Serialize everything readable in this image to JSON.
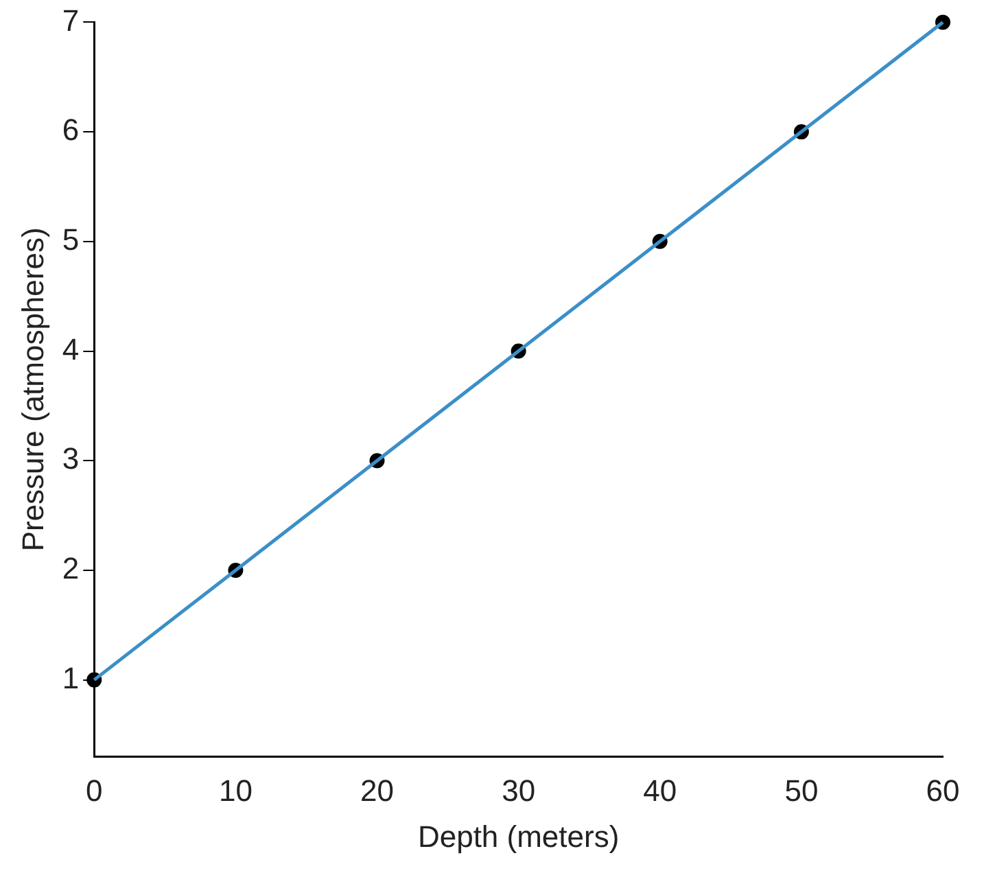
{
  "chart_data": {
    "type": "line",
    "xlabel": "Depth (meters)",
    "ylabel": "Pressure (atmospheres)",
    "x": [
      0,
      10,
      20,
      30,
      40,
      50,
      60
    ],
    "series": [
      {
        "color": "#3b8fc8",
        "values": [
          1,
          2,
          3,
          4,
          5,
          6,
          7
        ]
      },
      {
        "type": "scatter",
        "color": "#000000",
        "values": [
          1,
          2,
          3,
          4,
          5,
          6,
          7
        ]
      }
    ],
    "xlim": [
      0,
      60
    ],
    "xticks": [
      0,
      10,
      20,
      30,
      40,
      50,
      60
    ],
    "ylim": [
      0.3,
      7
    ],
    "yticks": [
      1,
      2,
      3,
      4,
      5,
      6,
      7
    ],
    "grid": false,
    "legend": false
  }
}
